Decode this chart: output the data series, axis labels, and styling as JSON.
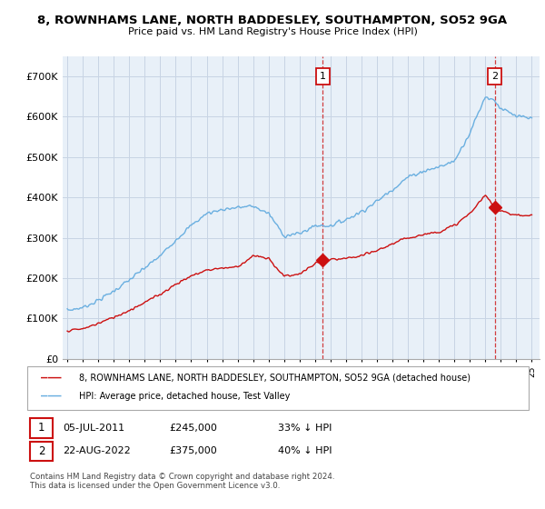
{
  "title1": "8, ROWNHAMS LANE, NORTH BADDESLEY, SOUTHAMPTON, SO52 9GA",
  "title2": "Price paid vs. HM Land Registry's House Price Index (HPI)",
  "legend_red": "8, ROWNHAMS LANE, NORTH BADDESLEY, SOUTHAMPTON, SO52 9GA (detached house)",
  "legend_blue": "HPI: Average price, detached house, Test Valley",
  "annotation1_date": "05-JUL-2011",
  "annotation1_price": "£245,000",
  "annotation1_hpi": "33% ↓ HPI",
  "annotation2_date": "22-AUG-2022",
  "annotation2_price": "£375,000",
  "annotation2_hpi": "40% ↓ HPI",
  "footnote": "Contains HM Land Registry data © Crown copyright and database right 2024.\nThis data is licensed under the Open Government Licence v3.0.",
  "ylim": [
    0,
    750000
  ],
  "sale1_year": 2011.5,
  "sale2_year": 2022.6,
  "sale1_price": 245000,
  "sale2_price": 375000,
  "hpi_color": "#6aafe0",
  "price_color": "#cc1010",
  "bg_color": "#e8f0f8",
  "grid_color": "#c8d4e4",
  "label_box_color": "#cc1010"
}
